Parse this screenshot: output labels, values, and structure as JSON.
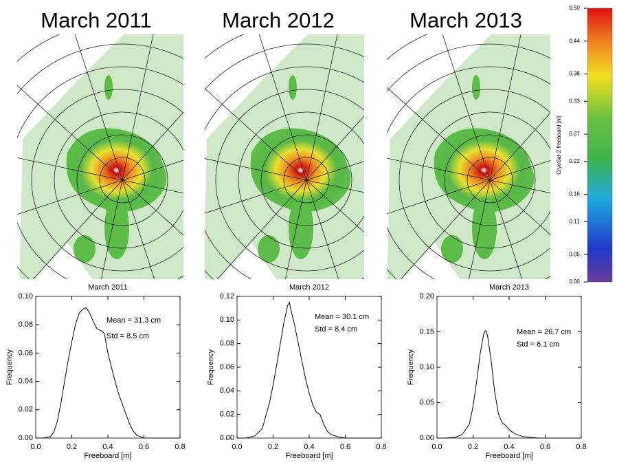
{
  "maps": {
    "titles": [
      "March 2011",
      "March 2012",
      "March 2013"
    ]
  },
  "colorbar": {
    "label": "CryoSat-2 freeboard [m]",
    "lim": [
      0,
      0.5
    ],
    "ticks": [
      {
        "value": 0,
        "label": "0.00"
      },
      {
        "value": 0.05,
        "label": "0.05"
      },
      {
        "value": 0.11,
        "label": "0.11"
      },
      {
        "value": 0.16,
        "label": "0.16"
      },
      {
        "value": 0.22,
        "label": "0.22"
      },
      {
        "value": 0.27,
        "label": "0.27"
      },
      {
        "value": 0.33,
        "label": "0.33"
      },
      {
        "value": 0.38,
        "label": "0.38"
      },
      {
        "value": 0.44,
        "label": "0.44"
      },
      {
        "value": 0.5,
        "label": "0.50"
      }
    ]
  },
  "chart_data": [
    {
      "type": "line",
      "title": "March 2011",
      "xlabel": "Freeboard [m]",
      "ylabel": "Frequency",
      "annotations": [
        "Mean = 31.3 cm",
        "Std = 8.5 cm"
      ],
      "color": "#000000",
      "x": [
        0,
        0.04,
        0.08,
        0.1,
        0.12,
        0.14,
        0.16,
        0.18,
        0.2,
        0.22,
        0.24,
        0.26,
        0.28,
        0.3,
        0.32,
        0.34,
        0.36,
        0.38,
        0.4,
        0.42,
        0.44,
        0.46,
        0.48,
        0.5,
        0.52,
        0.54,
        0.56,
        0.58,
        0.6,
        0.7,
        0.8
      ],
      "values": [
        0,
        0,
        0.001,
        0.004,
        0.012,
        0.025,
        0.04,
        0.055,
        0.068,
        0.08,
        0.088,
        0.091,
        0.092,
        0.088,
        0.082,
        0.077,
        0.076,
        0.074,
        0.06,
        0.05,
        0.04,
        0.031,
        0.024,
        0.017,
        0.01,
        0.005,
        0.002,
        0.001,
        0,
        0,
        0
      ],
      "xlim": [
        0,
        0.8
      ],
      "xticks": [
        {
          "value": 0,
          "label": "0.0"
        },
        {
          "value": 0.2,
          "label": "0.2"
        },
        {
          "value": 0.4,
          "label": "0.4"
        },
        {
          "value": 0.6,
          "label": "0.6"
        },
        {
          "value": 0.8,
          "label": "0.8"
        }
      ],
      "ylim": [
        0,
        0.1
      ],
      "yticks": [
        {
          "value": 0,
          "label": "0.00"
        },
        {
          "value": 0.02,
          "label": "0.02"
        },
        {
          "value": 0.04,
          "label": "0.04"
        },
        {
          "value": 0.06,
          "label": "0.06"
        },
        {
          "value": 0.08,
          "label": "0.08"
        },
        {
          "value": 0.1,
          "label": "0.10"
        }
      ]
    },
    {
      "type": "line",
      "title": "March 2012",
      "xlabel": "Freeboard [m]",
      "ylabel": "Frequency",
      "annotations": [
        "Mean = 30.1 cm",
        "Std = 8.4 cm"
      ],
      "color": "#000000",
      "x": [
        0,
        0.05,
        0.1,
        0.14,
        0.18,
        0.2,
        0.22,
        0.24,
        0.26,
        0.28,
        0.29,
        0.3,
        0.32,
        0.34,
        0.36,
        0.38,
        0.4,
        0.42,
        0.44,
        0.46,
        0.48,
        0.5,
        0.52,
        0.56,
        0.6,
        0.7,
        0.8
      ],
      "values": [
        0,
        0,
        0.002,
        0.008,
        0.03,
        0.045,
        0.062,
        0.08,
        0.098,
        0.112,
        0.115,
        0.108,
        0.095,
        0.08,
        0.065,
        0.05,
        0.038,
        0.028,
        0.022,
        0.02,
        0.012,
        0.006,
        0.003,
        0.001,
        0,
        0,
        0
      ],
      "xlim": [
        0,
        0.8
      ],
      "xticks": [
        {
          "value": 0,
          "label": "0.0"
        },
        {
          "value": 0.2,
          "label": "0.2"
        },
        {
          "value": 0.4,
          "label": "0.4"
        },
        {
          "value": 0.6,
          "label": "0.6"
        },
        {
          "value": 0.8,
          "label": "0.8"
        }
      ],
      "ylim": [
        0,
        0.12
      ],
      "yticks": [
        {
          "value": 0,
          "label": "0.00"
        },
        {
          "value": 0.02,
          "label": "0.02"
        },
        {
          "value": 0.04,
          "label": "0.04"
        },
        {
          "value": 0.06,
          "label": "0.06"
        },
        {
          "value": 0.08,
          "label": "0.08"
        },
        {
          "value": 0.1,
          "label": "0.10"
        },
        {
          "value": 0.12,
          "label": "0.12"
        }
      ]
    },
    {
      "type": "line",
      "title": "March 2013",
      "xlabel": "Freeboard [m]",
      "ylabel": "Frequency",
      "annotations": [
        "Mean = 26.7 cm",
        "Std = 6.1 cm"
      ],
      "color": "#000000",
      "x": [
        0,
        0.05,
        0.1,
        0.14,
        0.18,
        0.2,
        0.22,
        0.24,
        0.26,
        0.27,
        0.28,
        0.3,
        0.32,
        0.34,
        0.36,
        0.38,
        0.4,
        0.42,
        0.44,
        0.48,
        0.52,
        0.56,
        0.6,
        0.7,
        0.8
      ],
      "values": [
        0,
        0,
        0.001,
        0.005,
        0.02,
        0.045,
        0.08,
        0.12,
        0.148,
        0.152,
        0.145,
        0.11,
        0.065,
        0.035,
        0.022,
        0.018,
        0.012,
        0.008,
        0.005,
        0.002,
        0.001,
        0,
        0,
        0,
        0
      ],
      "xlim": [
        0,
        0.8
      ],
      "xticks": [
        {
          "value": 0,
          "label": "0.0"
        },
        {
          "value": 0.2,
          "label": "0.2"
        },
        {
          "value": 0.4,
          "label": "0.4"
        },
        {
          "value": 0.6,
          "label": "0.6"
        },
        {
          "value": 0.8,
          "label": "0.8"
        }
      ],
      "ylim": [
        0,
        0.2
      ],
      "yticks": [
        {
          "value": 0,
          "label": "0.00"
        },
        {
          "value": 0.05,
          "label": "0.05"
        },
        {
          "value": 0.1,
          "label": "0.10"
        },
        {
          "value": 0.15,
          "label": "0.15"
        },
        {
          "value": 0.2,
          "label": "0.20"
        }
      ]
    }
  ]
}
